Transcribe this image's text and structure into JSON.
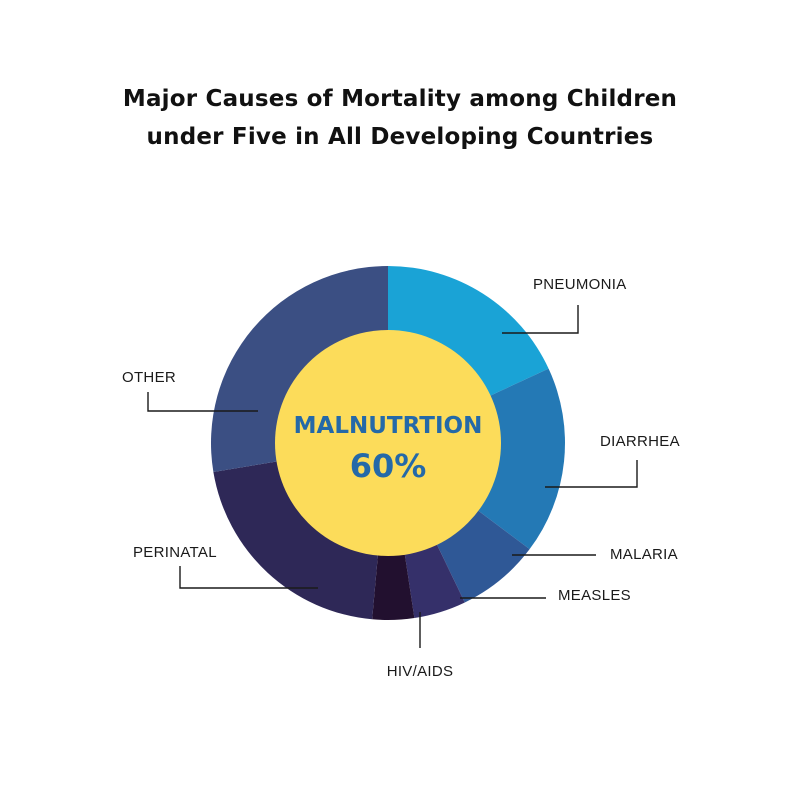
{
  "chart_data": {
    "type": "pie",
    "title": "Major Causes of Mortality among Children under Five in All Developing Countries",
    "title_lines": [
      "Major Causes of Mortality among Children",
      "under Five in All Developing Countries"
    ],
    "center_label": {
      "text": "MALNUTRTION",
      "value": "60%"
    },
    "slices": [
      {
        "label": "PNEUMONIA",
        "value": 19,
        "color": "#1aa3d6"
      },
      {
        "label": "DIARRHEA",
        "value": 18,
        "color": "#2479b5"
      },
      {
        "label": "MALARIA",
        "value": 8,
        "color": "#2f5896"
      },
      {
        "label": "MEASLES",
        "value": 5,
        "color": "#35306a"
      },
      {
        "label": "HIV/AIDS",
        "value": 4,
        "color": "#22102f"
      },
      {
        "label": "PERINATAL",
        "value": 22,
        "color": "#2e2857"
      },
      {
        "label": "OTHER",
        "value": 29,
        "color": "#3b4f83"
      }
    ],
    "legend": "none",
    "grid": false
  },
  "colors": {
    "center_fill": "#fcdc5a",
    "center_text": "#2469a8",
    "leader_line": "#1a1a1a"
  }
}
